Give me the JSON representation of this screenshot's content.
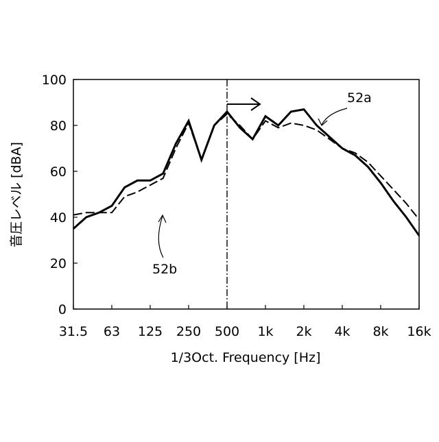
{
  "chart_data": {
    "type": "line",
    "xlabel": "1/3Oct. Frequency [Hz]",
    "ylabel": "音圧レベル [dBA]",
    "ylim": [
      0,
      100
    ],
    "yticks": [
      "0",
      "20",
      "40",
      "60",
      "80",
      "100"
    ],
    "x_tick_labels": [
      "31.5",
      "63",
      "125",
      "250",
      "500",
      "1k",
      "2k",
      "4k",
      "8k",
      "16k"
    ],
    "x_bands": [
      "31.5",
      "40",
      "50",
      "63",
      "80",
      "100",
      "125",
      "160",
      "200",
      "250",
      "315",
      "400",
      "500",
      "630",
      "800",
      "1k",
      "1.25k",
      "1.6k",
      "2k",
      "2.5k",
      "3.15k",
      "4k",
      "5k",
      "6.3k",
      "8k",
      "10k",
      "12.5k",
      "16k"
    ],
    "grid": false,
    "series": [
      {
        "name": "52a",
        "style": "solid",
        "values": [
          35,
          40,
          42,
          45,
          53,
          56,
          56,
          59,
          72,
          82,
          65,
          80,
          86,
          79,
          74,
          84,
          80,
          86,
          87,
          80,
          75,
          70,
          67,
          62,
          55,
          47,
          40,
          32
        ]
      },
      {
        "name": "52b",
        "style": "dashed",
        "values": [
          41,
          42,
          42,
          42,
          49,
          51,
          54,
          57,
          70,
          81,
          65,
          80,
          85,
          80,
          74,
          82,
          79,
          81,
          80,
          78,
          74,
          70,
          68,
          64,
          58,
          52,
          46,
          39
        ]
      }
    ],
    "annotations": {
      "divider_at": "500",
      "arrow": "right",
      "labels": [
        "52a",
        "52b"
      ]
    }
  }
}
